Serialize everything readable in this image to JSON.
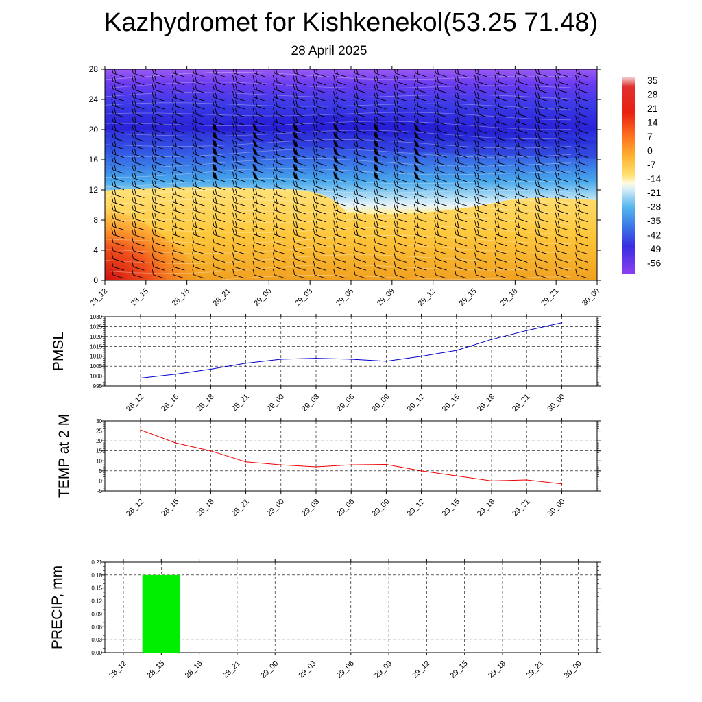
{
  "header": {
    "title": "Kazhydromet for Kishkenekol(53.25 71.48)",
    "date": "28 April 2025"
  },
  "chart_data": [
    {
      "type": "heatmap",
      "description_free": true,
      "ylim": [
        0,
        28
      ],
      "y_ticks": [
        0,
        4,
        8,
        12,
        16,
        20,
        24,
        28
      ],
      "x_ticks": [
        "28_12",
        "28_15",
        "28_18",
        "28_21",
        "29_00",
        "29_03",
        "29_06",
        "29_09",
        "29_12",
        "29_15",
        "29_18",
        "29_21",
        "30_00"
      ],
      "colorbar_labels": [
        "35",
        "28",
        "21",
        "14",
        "7",
        "0",
        "-7",
        "-14",
        "-21",
        "-28",
        "-35",
        "-42",
        "-49",
        "-56"
      ],
      "colorbar_colors": [
        "#f2c9c9",
        "#d01010",
        "#ff6600",
        "#ffcc33",
        "#fff7b0",
        "#cfe9f7",
        "#58b8ee",
        "#3b6fe6",
        "#3a1ee0",
        "#8a3ff0"
      ]
    },
    {
      "type": "line",
      "ylabel": "PMSL",
      "ylim": [
        995,
        1030
      ],
      "y_ticks": [
        995,
        1000,
        1005,
        1010,
        1015,
        1020,
        1025,
        1030
      ],
      "x": [
        "28_12",
        "28_15",
        "28_18",
        "28_21",
        "29_00",
        "29_03",
        "29_06",
        "29_09",
        "29_12",
        "29_15",
        "29_18",
        "29_21",
        "30_00"
      ],
      "values": [
        999,
        1001,
        1003.5,
        1006.5,
        1008.5,
        1009,
        1008.5,
        1007.5,
        1010,
        1013,
        1018.5,
        1023,
        1027
      ],
      "color": "#0000cc"
    },
    {
      "type": "line",
      "ylabel": "TEMP at 2 M",
      "ylim": [
        -5,
        30
      ],
      "y_ticks": [
        -5,
        0,
        5,
        10,
        15,
        20,
        25,
        30
      ],
      "x": [
        "28_12",
        "28_15",
        "28_18",
        "28_21",
        "29_00",
        "29_03",
        "29_06",
        "29_09",
        "29_12",
        "29_15",
        "29_18",
        "29_21",
        "30_00"
      ],
      "values": [
        25.5,
        19,
        15,
        9.5,
        8,
        7,
        8,
        8.2,
        5,
        2.5,
        0,
        0.5,
        -1.5
      ],
      "color": "#ee0000"
    },
    {
      "type": "bar",
      "ylabel": "PRECIP, mm",
      "ylim": [
        0,
        0.21
      ],
      "y_ticks": [
        "0.00",
        "0.03",
        "0.06",
        "0.09",
        "0.12",
        "0.15",
        "0.18",
        "0.21"
      ],
      "categories": [
        "28_12",
        "28_15",
        "28_18",
        "28_21",
        "29_00",
        "29_03",
        "29_06",
        "29_09",
        "29_12",
        "29_15",
        "29_18",
        "29_21",
        "30_00"
      ],
      "values": [
        0,
        0.18,
        0,
        0,
        0,
        0,
        0,
        0,
        0,
        0,
        0,
        0,
        0
      ],
      "color": "#00ee00"
    }
  ]
}
